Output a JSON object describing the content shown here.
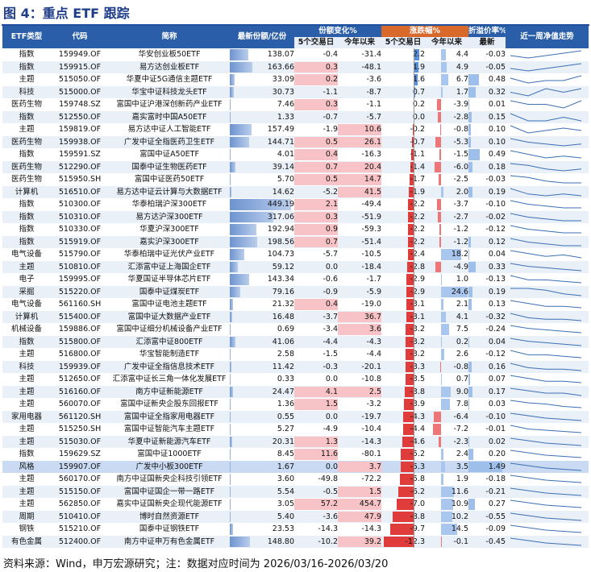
{
  "title": "图 4：重点 ETF 跟踪",
  "headers": {
    "etf_type": "ETF类型",
    "code": "代码",
    "name": "简称",
    "aum": "最新份额/亿份",
    "share_change": "份额变化%",
    "price_change": "涨跌幅%",
    "premium": "折溢价率%",
    "trend": "近一周净值走势",
    "d5": "5个交易日",
    "ytd": "今年以来",
    "d5b": "5个交易日",
    "ytdb": "今年以来",
    "latest": "最新"
  },
  "rows": [
    {
      "type": "指数",
      "code": "159949.OF",
      "name": "华安创业板50ETF",
      "aum": "138.07",
      "s5": "-0.4",
      "sy": "-31.4",
      "p5": "2.2",
      "py": "4.4",
      "prem": "-0.03",
      "spark": [
        5,
        4,
        5,
        6,
        7
      ]
    },
    {
      "type": "指数",
      "code": "159915.OF",
      "name": "易方达创业板ETF",
      "aum": "163.66",
      "s5": "0.3",
      "sy": "-48.1",
      "p5": "1.9",
      "py": "4.9",
      "prem": "-0.05",
      "spark": [
        5,
        4,
        5,
        6,
        7
      ]
    },
    {
      "type": "主题",
      "code": "515050.OF",
      "name": "华夏中证5G通信主题ETF",
      "aum": "33.09",
      "s5": "0.2",
      "sy": "-3.6",
      "p5": "1.6",
      "py": "6.7",
      "prem": "0.48",
      "spark": [
        6,
        4,
        5,
        5,
        7
      ]
    },
    {
      "type": "科技",
      "code": "515000.OF",
      "name": "华宝中证科技龙头ETF",
      "aum": "30.73",
      "s5": "-1.1",
      "sy": "-8.7",
      "p5": "0.7",
      "py": "1.7",
      "prem": "0.32",
      "spark": [
        5,
        4,
        6,
        5,
        6
      ]
    },
    {
      "type": "医药生物",
      "code": "159748.SZ",
      "name": "富国中证沪港深创新药产业ETF",
      "aum": "7.46",
      "s5": "0.3",
      "sy": "-1.1",
      "p5": "0.2",
      "py": "-3.9",
      "prem": "0.01",
      "spark": [
        6,
        5,
        5,
        4,
        6
      ]
    },
    {
      "type": "指数",
      "code": "512550.OF",
      "name": "嘉实富时中国A50ETF",
      "aum": "1.33",
      "s5": "-0.7",
      "sy": "-5.7",
      "p5": "0.0",
      "py": "-2.8",
      "prem": "0.15",
      "spark": [
        6,
        4,
        4,
        5,
        4
      ]
    },
    {
      "type": "主题",
      "code": "159819.OF",
      "name": "易方达中证人工智能ETF",
      "aum": "157.49",
      "s5": "-1.9",
      "sy": "10.6",
      "p5": "-0.2",
      "py": "-0.8",
      "prem": "0.10",
      "spark": [
        6,
        3,
        4,
        5,
        4
      ]
    },
    {
      "type": "医药生物",
      "code": "159938.OF",
      "name": "广发中证全指医药卫生ETF",
      "aum": "144.71",
      "s5": "0.5",
      "sy": "26.1",
      "p5": "-0.7",
      "py": "-5.3",
      "prem": "0.10",
      "spark": [
        7,
        5,
        4,
        3,
        4
      ]
    },
    {
      "type": "指数",
      "code": "159591.SZ",
      "name": "富国中证A50ETF",
      "aum": "4.01",
      "s5": "0.4",
      "sy": "-16.3",
      "p5": "-1.1",
      "py": "-1.5",
      "prem": "0.49",
      "spark": [
        7,
        5,
        3,
        4,
        3
      ]
    },
    {
      "type": "医药生物",
      "code": "512290.OF",
      "name": "国泰中证生物医药ETF",
      "aum": "39.14",
      "s5": "0.7",
      "sy": "20.4",
      "p5": "-1.4",
      "py": "-6.0",
      "prem": "0.18",
      "spark": [
        7,
        6,
        4,
        3,
        4
      ]
    },
    {
      "type": "医药生物",
      "code": "515950.SH",
      "name": "富国中证医药50ETF",
      "aum": "5.70",
      "s5": "0.5",
      "sy": "14.7",
      "p5": "-1.7",
      "py": "-2.5",
      "prem": "-0.03",
      "spark": [
        7,
        6,
        4,
        3,
        3
      ]
    },
    {
      "type": "计算机",
      "code": "516510.OF",
      "name": "易方达中证云计算与大数据ETF",
      "aum": "14.62",
      "s5": "-5.2",
      "sy": "41.5",
      "p5": "-1.9",
      "py": "2.0",
      "prem": "0.19",
      "spark": [
        7,
        4,
        3,
        4,
        3
      ]
    },
    {
      "type": "指数",
      "code": "510300.OF",
      "name": "华泰柏瑞沪深300ETF",
      "aum": "449.19",
      "s5": "2.1",
      "sy": "-49.4",
      "p5": "-2.2",
      "py": "-3.7",
      "prem": "-0.10",
      "spark": [
        7,
        5,
        4,
        3,
        3
      ]
    },
    {
      "type": "指数",
      "code": "510310.OF",
      "name": "易方达沪深300ETF",
      "aum": "317.06",
      "s5": "0.3",
      "sy": "-51.9",
      "p5": "-2.2",
      "py": "-2.7",
      "prem": "-0.02",
      "spark": [
        7,
        5,
        4,
        3,
        3
      ]
    },
    {
      "type": "指数",
      "code": "510330.OF",
      "name": "华夏沪深300ETF",
      "aum": "192.94",
      "s5": "0.9",
      "sy": "-59.3",
      "p5": "-2.2",
      "py": "-1.2",
      "prem": "-0.12",
      "spark": [
        7,
        5,
        4,
        3,
        3
      ]
    },
    {
      "type": "指数",
      "code": "515919.OF",
      "name": "嘉实沪深300ETF",
      "aum": "198.56",
      "s5": "0.7",
      "sy": "-51.4",
      "p5": "-2.2",
      "py": "-1.2",
      "prem": "0.12",
      "spark": [
        7,
        5,
        4,
        3,
        3
      ]
    },
    {
      "type": "电气设备",
      "code": "515790.OF",
      "name": "华泰柏瑞中证光伏产业ETF",
      "aum": "104.73",
      "s5": "-5.7",
      "sy": "-10.5",
      "p5": "-2.4",
      "py": "18.2",
      "prem": "0.04",
      "spark": [
        7,
        5,
        3,
        4,
        2
      ]
    },
    {
      "type": "主题",
      "code": "510810.OF",
      "name": "汇添富中证上海国企ETF",
      "aum": "59.12",
      "s5": "0.0",
      "sy": "-18.4",
      "p5": "-2.8",
      "py": "-4.9",
      "prem": "0.33",
      "spark": [
        7,
        5,
        4,
        3,
        2
      ]
    },
    {
      "type": "电子",
      "code": "159995.OF",
      "name": "华夏国证半导体芯片ETF",
      "aum": "143.34",
      "s5": "-0.6",
      "sy": "-1.7",
      "p5": "-2.9",
      "py": "1.0",
      "prem": "-0.13",
      "spark": [
        7,
        4,
        4,
        3,
        2
      ]
    },
    {
      "type": "采掘",
      "code": "515220.OF",
      "name": "国泰中证煤炭ETF",
      "aum": "79.16",
      "s5": "-0.9",
      "sy": "-5.9",
      "p5": "-2.9",
      "py": "24.6",
      "prem": "0.19",
      "spark": [
        6,
        6,
        5,
        3,
        2
      ]
    },
    {
      "type": "电气设备",
      "code": "561160.SH",
      "name": "富国中证电池主题ETF",
      "aum": "21.32",
      "s5": "0.4",
      "sy": "-19.0",
      "p5": "-3.1",
      "py": "2.1",
      "prem": "0.13",
      "spark": [
        7,
        5,
        3,
        3,
        2
      ]
    },
    {
      "type": "计算机",
      "code": "515400.OF",
      "name": "富国中证大数据产业ETF",
      "aum": "16.48",
      "s5": "-3.7",
      "sy": "36.7",
      "p5": "-3.1",
      "py": "4.1",
      "prem": "-0.32",
      "spark": [
        7,
        4,
        3,
        3,
        2
      ]
    },
    {
      "type": "机械设备",
      "code": "159886.OF",
      "name": "富国中证细分机械设备产业ETF",
      "aum": "0.69",
      "s5": "-3.4",
      "sy": "3.6",
      "p5": "-3.2",
      "py": "7.5",
      "prem": "-0.24",
      "spark": [
        7,
        5,
        4,
        3,
        2
      ]
    },
    {
      "type": "指数",
      "code": "515800.OF",
      "name": "汇添富中证800ETF",
      "aum": "41.06",
      "s5": "-4.4",
      "sy": "-4.3",
      "p5": "-3.2",
      "py": "0.2",
      "prem": "0.04",
      "spark": [
        7,
        5,
        4,
        3,
        2
      ]
    },
    {
      "type": "主题",
      "code": "516800.OF",
      "name": "华宝智能制造ETF",
      "aum": "2.58",
      "s5": "-1.5",
      "sy": "-4.4",
      "p5": "-3.2",
      "py": "2.6",
      "prem": "-0.12",
      "spark": [
        7,
        4,
        4,
        3,
        2
      ]
    },
    {
      "type": "科技",
      "code": "159939.OF",
      "name": "广发中证全指信息技术ETF",
      "aum": "11.42",
      "s5": "-0.3",
      "sy": "-20.1",
      "p5": "-3.3",
      "py": "-0.8",
      "prem": "0.16",
      "spark": [
        7,
        4,
        3,
        3,
        2
      ]
    },
    {
      "type": "主题",
      "code": "512650.OF",
      "name": "汇添富中证长三角一体化发展ETF",
      "aum": "0.33",
      "s5": "0.0",
      "sy": "-10.8",
      "p5": "-3.5",
      "py": "0.7",
      "prem": "0.07",
      "spark": [
        7,
        5,
        3,
        3,
        2
      ]
    },
    {
      "type": "主题",
      "code": "516160.OF",
      "name": "南方中证新能源ETF",
      "aum": "24.47",
      "s5": "4.1",
      "sy": "2.5",
      "p5": "-3.8",
      "py": "9.0",
      "prem": "0.17",
      "spark": [
        7,
        5,
        3,
        3,
        1
      ]
    },
    {
      "type": "主题",
      "code": "560070.OF",
      "name": "富国中证新央企股东回报ETF",
      "aum": "1.36",
      "s5": "1.5",
      "sy": "-3.2",
      "p5": "-3.9",
      "py": "7.8",
      "prem": "0.03",
      "spark": [
        7,
        5,
        4,
        2,
        1
      ]
    },
    {
      "type": "家用电器",
      "code": "561120.SH",
      "name": "富国中证全指家用电器ETF",
      "aum": "0.55",
      "s5": "0.0",
      "sy": "-19.7",
      "p5": "-4.3",
      "py": "-6.4",
      "prem": "-0.10",
      "spark": [
        7,
        5,
        3,
        2,
        1
      ]
    },
    {
      "type": "主题",
      "code": "515250.SH",
      "name": "富国中证智能汽车主题ETF",
      "aum": "5.27",
      "s5": "-4.9",
      "sy": "-10.4",
      "p5": "-4.4",
      "py": "-7.2",
      "prem": "-0.01",
      "spark": [
        7,
        4,
        3,
        2,
        1
      ]
    },
    {
      "type": "主题",
      "code": "515030.OF",
      "name": "华夏中证新能源汽车ETF",
      "aum": "20.31",
      "s5": "1.3",
      "sy": "-14.3",
      "p5": "-4.6",
      "py": "-2.3",
      "prem": "0.02",
      "spark": [
        7,
        5,
        3,
        2,
        1
      ]
    },
    {
      "type": "指数",
      "code": "159629.SZ",
      "name": "富国中证1000ETF",
      "aum": "8.45",
      "s5": "11.6",
      "sy": "-80.1",
      "p5": "-5.2",
      "py": "2.4",
      "prem": "0.20",
      "spark": [
        7,
        5,
        3,
        2,
        1
      ]
    },
    {
      "type": "风格",
      "code": "159907.OF",
      "name": "广发中小板300ETF",
      "aum": "1.67",
      "s5": "0.0",
      "sy": "3.7",
      "p5": "-5.3",
      "py": "3.5",
      "prem": "1.49",
      "spark": [
        7,
        5,
        3,
        2,
        1
      ]
    },
    {
      "type": "主题",
      "code": "560170.OF",
      "name": "南方中证国新央企科技引领ETF",
      "aum": "3.60",
      "s5": "-49.8",
      "sy": "-72.2",
      "p5": "-5.8",
      "py": "1.9",
      "prem": "-0.18",
      "spark": [
        7,
        5,
        3,
        2,
        1
      ]
    },
    {
      "type": "主题",
      "code": "515150.OF",
      "name": "富国中证国企一带一路ETF",
      "aum": "5.54",
      "s5": "-0.5",
      "sy": "1.5",
      "p5": "-6.2",
      "py": "11.6",
      "prem": "-0.21",
      "spark": [
        7,
        5,
        3,
        2,
        1
      ]
    },
    {
      "type": "主题",
      "code": "562850.OF",
      "name": "嘉实中证国新央企现代能源ETF",
      "aum": "3.05",
      "s5": "57.2",
      "sy": "454.7",
      "p5": "-7.0",
      "py": "10.9",
      "prem": "0.27",
      "spark": [
        7,
        5,
        3,
        2,
        1
      ]
    },
    {
      "type": "周期",
      "code": "510410.OF",
      "name": "博时自然资源ETF",
      "aum": "5.40",
      "s5": "-3.6",
      "sy": "47.9",
      "p5": "-8.8",
      "py": "10.2",
      "prem": "-0.55",
      "spark": [
        7,
        5,
        3,
        2,
        1
      ]
    },
    {
      "type": "钢铁",
      "code": "515210.OF",
      "name": "国泰中证钢铁ETF",
      "aum": "23.53",
      "s5": "-14.3",
      "sy": "-14.3",
      "p5": "-9.7",
      "py": "14.5",
      "prem": "-0.09",
      "spark": [
        7,
        5,
        3,
        2,
        1
      ]
    },
    {
      "type": "有色金属",
      "code": "512400.OF",
      "name": "南方中证申万有色金属ETF",
      "aum": "148.80",
      "s5": "-10.2",
      "sy": "39.2",
      "p5": "-12.3",
      "py": "-0.1",
      "prem": "-0.45",
      "spark": [
        7,
        5,
        3,
        2,
        1
      ]
    }
  ],
  "source": "资料来源：Wind，申万宏源研究；注：数据对应时间为 2026/03/16-2026/03/20"
}
